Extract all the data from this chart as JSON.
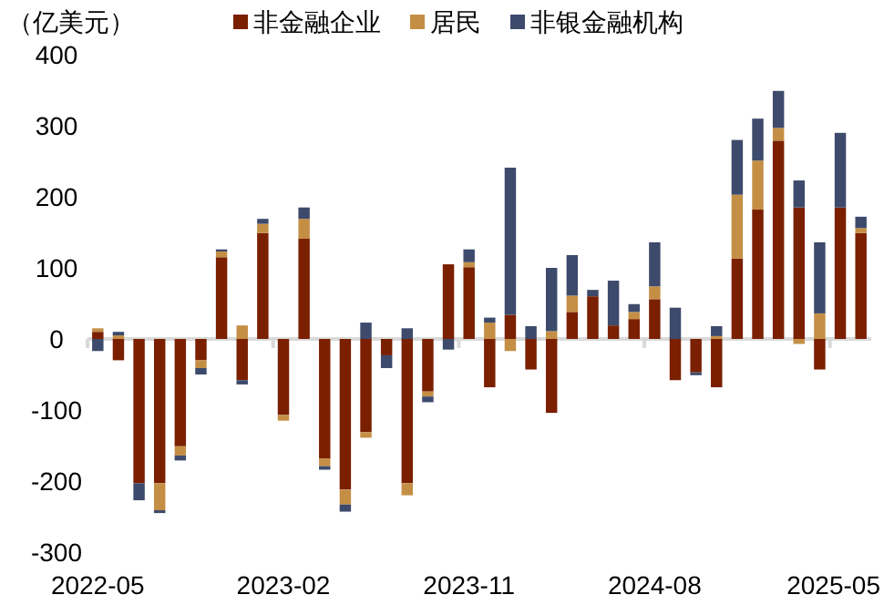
{
  "chart_data": {
    "type": "bar",
    "stacked": true,
    "ylabel": "（亿美元）",
    "legend": "top",
    "categories": [
      "2022-05",
      null,
      null,
      null,
      null,
      null,
      null,
      null,
      null,
      "2023-02",
      null,
      null,
      null,
      null,
      null,
      null,
      null,
      null,
      "2023-11",
      null,
      null,
      null,
      null,
      null,
      null,
      null,
      null,
      "2024-08",
      null,
      null,
      null,
      null,
      null,
      null,
      null,
      null,
      "2025-05",
      null
    ],
    "ylim": [
      -300,
      400
    ],
    "yticks": [
      -300,
      -200,
      -100,
      0,
      100,
      200,
      300,
      400
    ],
    "series": [
      {
        "name": "非金融企业",
        "color": "#7a1f00",
        "values": [
          10,
          -30,
          -203,
          -203,
          -151,
          -30,
          115,
          -58,
          149,
          -107,
          141,
          -168,
          -212,
          -131,
          -23,
          -203,
          -74,
          105,
          101,
          -68,
          34,
          -43,
          -104,
          38,
          60,
          19,
          28,
          56,
          -58,
          -47,
          -68,
          113,
          182,
          279,
          185,
          -43,
          185,
          149
        ]
      },
      {
        "name": "居民",
        "color": "#c48f45",
        "values": [
          5,
          5,
          0,
          -38,
          -13,
          -11,
          8,
          19,
          13,
          -8,
          28,
          -11,
          -21,
          -8,
          0,
          -17,
          -7,
          0,
          7,
          23,
          -17,
          0,
          11,
          23,
          0,
          0,
          10,
          18,
          0,
          0,
          4,
          90,
          69,
          18,
          -7,
          36,
          0,
          7
        ]
      },
      {
        "name": "非银金融机构",
        "color": "#3d4a6b",
        "values": [
          -17,
          5,
          -24,
          -4,
          -7,
          -9,
          3,
          -6,
          7,
          0,
          16,
          -5,
          -10,
          23,
          -18,
          15,
          -8,
          -15,
          18,
          7,
          207,
          18,
          89,
          57,
          9,
          63,
          11,
          62,
          44,
          -4,
          14,
          77,
          59,
          52,
          38,
          100,
          105,
          16
        ]
      }
    ]
  }
}
